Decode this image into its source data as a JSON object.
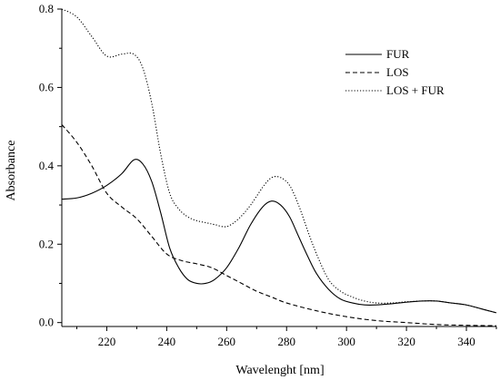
{
  "chart_data": {
    "type": "line",
    "title": "",
    "xlabel": "Wavelenght [nm]",
    "ylabel": "Absorbance",
    "xlim": [
      205,
      350
    ],
    "ylim": [
      -0.01,
      0.8
    ],
    "xticks": [
      220,
      240,
      260,
      280,
      300,
      320,
      340
    ],
    "yticks": [
      0.0,
      0.2,
      0.4,
      0.6,
      0.8
    ],
    "ytick_labels": [
      "0.0",
      "0.2",
      "0.4",
      "0.6",
      "0.8"
    ],
    "grid": false,
    "legend_position": "top-right",
    "series": [
      {
        "name": "FUR",
        "style": "solid",
        "x": [
          205,
          210,
          215,
          220,
          225,
          229,
          232,
          235,
          238,
          241,
          244,
          247,
          250,
          253,
          256,
          260,
          264,
          268,
          272,
          275,
          278,
          281,
          284,
          287,
          290,
          294,
          298,
          302,
          306,
          310,
          315,
          320,
          325,
          330,
          335,
          340,
          345,
          350
        ],
        "y": [
          0.315,
          0.318,
          0.33,
          0.35,
          0.38,
          0.415,
          0.405,
          0.36,
          0.28,
          0.19,
          0.14,
          0.11,
          0.1,
          0.1,
          0.11,
          0.14,
          0.19,
          0.25,
          0.295,
          0.31,
          0.3,
          0.27,
          0.22,
          0.17,
          0.125,
          0.085,
          0.06,
          0.05,
          0.045,
          0.045,
          0.048,
          0.052,
          0.055,
          0.055,
          0.05,
          0.045,
          0.035,
          0.025
        ]
      },
      {
        "name": "LOS",
        "style": "dashed",
        "x": [
          205,
          210,
          215,
          220,
          225,
          230,
          235,
          240,
          245,
          250,
          255,
          260,
          265,
          270,
          275,
          280,
          290,
          300,
          310,
          320,
          330,
          340,
          350
        ],
        "y": [
          0.505,
          0.46,
          0.4,
          0.33,
          0.295,
          0.265,
          0.22,
          0.175,
          0.158,
          0.15,
          0.14,
          0.12,
          0.1,
          0.08,
          0.065,
          0.05,
          0.03,
          0.015,
          0.005,
          0.0,
          -0.005,
          -0.007,
          -0.008
        ]
      },
      {
        "name": "LOS + FUR",
        "style": "dotted",
        "x": [
          205,
          210,
          215,
          220,
          225,
          229,
          232,
          235,
          238,
          241,
          244,
          247,
          250,
          253,
          256,
          260,
          264,
          268,
          272,
          275,
          278,
          281,
          284,
          287,
          290,
          294,
          298,
          302,
          306,
          310,
          315,
          320,
          325,
          330,
          335,
          340,
          345,
          350
        ],
        "y": [
          0.8,
          0.78,
          0.73,
          0.68,
          0.685,
          0.685,
          0.65,
          0.56,
          0.43,
          0.33,
          0.29,
          0.27,
          0.26,
          0.255,
          0.25,
          0.245,
          0.265,
          0.3,
          0.345,
          0.37,
          0.37,
          0.35,
          0.3,
          0.235,
          0.175,
          0.11,
          0.08,
          0.065,
          0.055,
          0.05,
          0.05,
          0.053,
          0.055,
          0.055,
          0.05,
          0.045,
          0.035,
          0.025
        ]
      }
    ]
  }
}
